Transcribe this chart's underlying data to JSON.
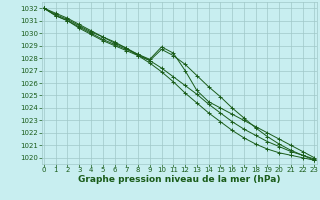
{
  "bg_color": "#c8eef0",
  "grid_color": "#a0c8c8",
  "line_color": "#1a5c1a",
  "xlabel": "Graphe pression niveau de la mer (hPa)",
  "xlabel_fontsize": 6.5,
  "tick_fontsize": 5.0,
  "ylim": [
    1019.5,
    1032.5
  ],
  "xlim": [
    -0.2,
    23.2
  ],
  "yticks": [
    1020,
    1021,
    1022,
    1023,
    1024,
    1025,
    1026,
    1027,
    1028,
    1029,
    1030,
    1031,
    1032
  ],
  "xticks": [
    0,
    1,
    2,
    3,
    4,
    5,
    6,
    7,
    8,
    9,
    10,
    11,
    12,
    13,
    14,
    15,
    16,
    17,
    18,
    19,
    20,
    21,
    22,
    23
  ],
  "series": [
    [
      1032.0,
      1031.6,
      1031.2,
      1030.7,
      1030.2,
      1029.7,
      1029.3,
      1028.8,
      1028.2,
      1027.6,
      1026.9,
      1026.1,
      1025.2,
      1024.4,
      1023.6,
      1022.9,
      1022.2,
      1021.6,
      1021.1,
      1020.7,
      1020.4,
      1020.2,
      1020.0,
      1019.8
    ],
    [
      1032.0,
      1031.5,
      1031.1,
      1030.6,
      1030.1,
      1029.7,
      1029.2,
      1028.8,
      1028.3,
      1027.8,
      1027.2,
      1026.5,
      1025.8,
      1025.1,
      1024.3,
      1023.6,
      1022.9,
      1022.3,
      1021.8,
      1021.3,
      1020.9,
      1020.5,
      1020.2,
      1019.9
    ],
    [
      1032.0,
      1031.4,
      1031.0,
      1030.4,
      1029.9,
      1029.4,
      1029.0,
      1028.6,
      1028.2,
      1027.8,
      1028.7,
      1028.2,
      1027.5,
      1026.6,
      1025.7,
      1024.9,
      1024.0,
      1023.2,
      1022.4,
      1021.7,
      1021.1,
      1020.6,
      1020.2,
      1019.8
    ],
    [
      1032.0,
      1031.4,
      1031.0,
      1030.5,
      1030.0,
      1029.5,
      1029.1,
      1028.7,
      1028.3,
      1027.9,
      1028.9,
      1028.4,
      1027.0,
      1025.4,
      1024.5,
      1024.0,
      1023.5,
      1023.0,
      1022.5,
      1022.0,
      1021.5,
      1021.0,
      1020.5,
      1020.0
    ]
  ]
}
